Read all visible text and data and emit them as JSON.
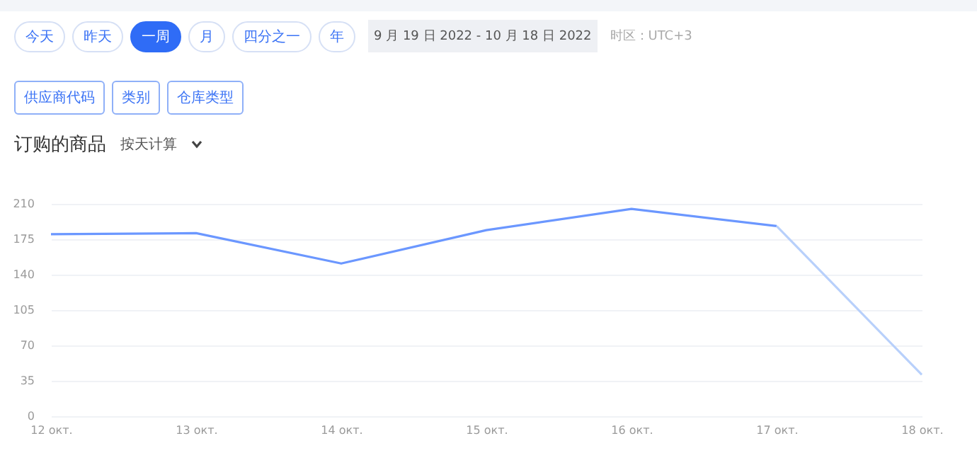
{
  "chart_data": {
    "type": "line",
    "title": "订购的商品",
    "annotations": [
      "今天",
      "昨天",
      "一周",
      "月",
      "四分之一",
      "年",
      "9 月 19 日 2022  - 10 月 18 日 2022",
      "时区：UTC+3",
      "供应商代码",
      "类别",
      "仓库类型",
      "按天计算"
    ],
    "categories": [
      "12 окт.",
      "13 окт.",
      "14 окт.",
      "15 окт.",
      "16 окт.",
      "17 окт.",
      "18 окт."
    ],
    "series": [
      {
        "color": "#6b97ff",
        "values": [
          180,
          181,
          151,
          184,
          205,
          188,
          null
        ]
      },
      {
        "color": "#b8d0fb",
        "values": [
          null,
          null,
          null,
          null,
          null,
          188,
          41
        ]
      }
    ],
    "ylim": [
      0,
      210
    ],
    "yticks": [
      0,
      35,
      70,
      105,
      140,
      175,
      210
    ],
    "grid": "y",
    "marker": "none",
    "line_style": "solid",
    "legend": false
  }
}
